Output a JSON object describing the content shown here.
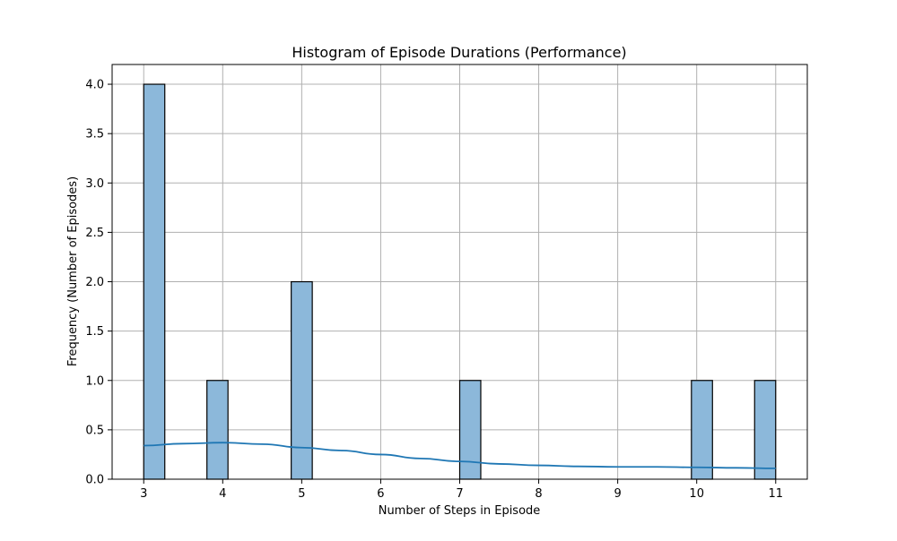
{
  "chart_data": {
    "type": "bar",
    "title": "Histogram of Episode Durations (Performance)",
    "xlabel": "Number of Steps in Episode",
    "ylabel": "Frequency (Number of Episodes)",
    "xlim": [
      2.6,
      11.4
    ],
    "ylim": [
      0,
      4.2
    ],
    "x_ticks": [
      3,
      4,
      5,
      6,
      7,
      8,
      9,
      10,
      11
    ],
    "y_ticks": [
      0.0,
      0.5,
      1.0,
      1.5,
      2.0,
      2.5,
      3.0,
      3.5,
      4.0
    ],
    "y_tick_labels": [
      "0.0",
      "0.5",
      "1.0",
      "1.5",
      "2.0",
      "2.5",
      "3.0",
      "3.5",
      "4.0"
    ],
    "bin_width": 0.2667,
    "bins": [
      {
        "x_start": 3.0,
        "count": 4
      },
      {
        "x_start": 3.8,
        "count": 1
      },
      {
        "x_start": 4.867,
        "count": 2
      },
      {
        "x_start": 7.0,
        "count": 1
      },
      {
        "x_start": 9.933,
        "count": 1
      },
      {
        "x_start": 10.733,
        "count": 1
      }
    ],
    "kde": {
      "x": [
        3.0,
        3.5,
        4.0,
        4.5,
        5.0,
        5.5,
        6.0,
        6.5,
        7.0,
        7.5,
        8.0,
        8.5,
        9.0,
        9.5,
        10.0,
        10.5,
        11.0
      ],
      "y": [
        0.34,
        0.36,
        0.37,
        0.355,
        0.32,
        0.29,
        0.25,
        0.21,
        0.18,
        0.155,
        0.14,
        0.13,
        0.125,
        0.125,
        0.12,
        0.115,
        0.11
      ]
    },
    "grid": true,
    "colors": {
      "bar": "#8cb8da",
      "kde": "#1f77b4"
    }
  }
}
